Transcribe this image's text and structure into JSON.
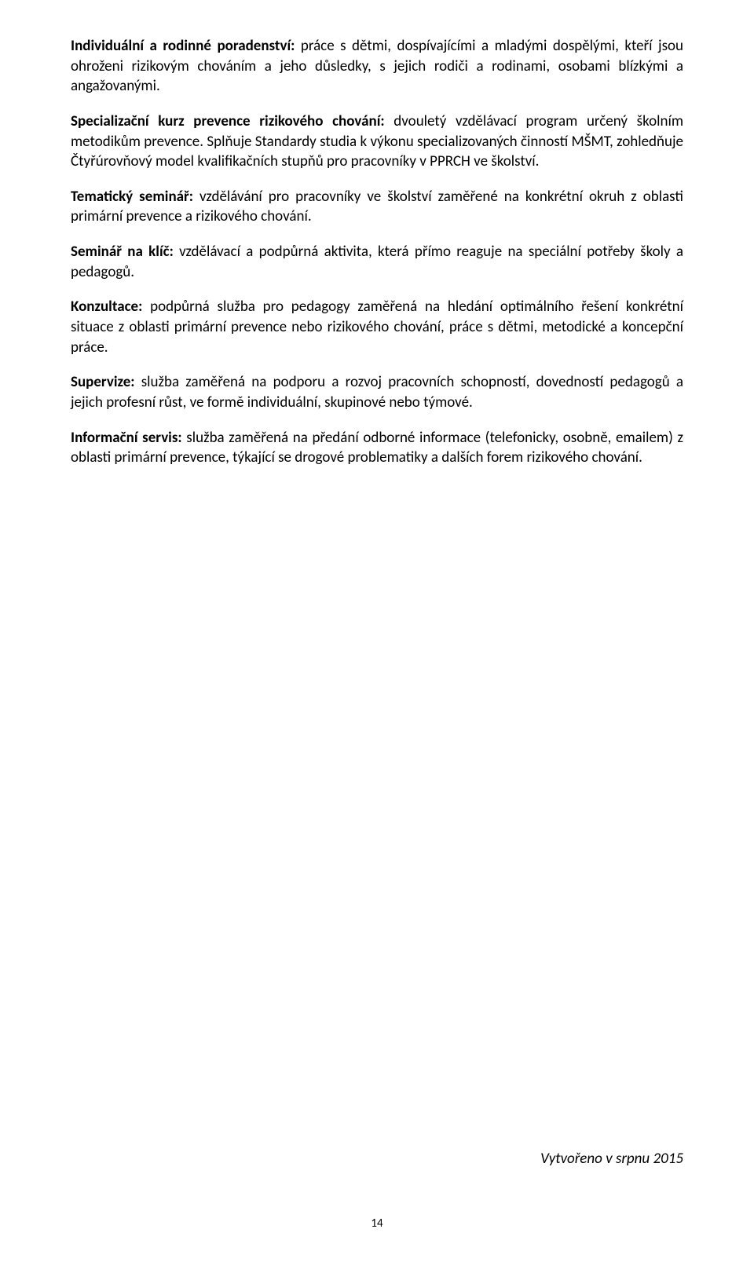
{
  "paragraphs": {
    "p1": {
      "bold": "Individuální a rodinné poradenství:",
      "text": " práce s dětmi, dospívajícími a mladými dospělými, kteří jsou ohroženi rizikovým chováním a jeho důsledky, s jejich rodiči a rodinami, osobami blízkými a angažovanými."
    },
    "p2": {
      "bold": "Specializační kurz prevence rizikového chování:",
      "text": " dvouletý vzdělávací program určený školním metodikům prevence. Splňuje Standardy studia k výkonu specializovaných činností MŠMT, zohledňuje Čtyřúrovňový model kvalifikačních stupňů pro pracovníky v PPRCH ve školství."
    },
    "p3": {
      "bold": "Tematický seminář:",
      "text": " vzdělávání pro pracovníky ve školství zaměřené na konkrétní okruh z oblasti primární prevence a rizikového chování."
    },
    "p4": {
      "bold": "Seminář na klíč:",
      "text": " vzdělávací a podpůrná aktivita, která přímo reaguje na speciální potřeby školy a pedagogů."
    },
    "p5": {
      "bold": "Konzultace:",
      "text": " podpůrná služba pro pedagogy zaměřená na hledání optimálního řešení konkrétní situace z oblasti primární prevence nebo rizikového chování, práce s dětmi, metodické a koncepční práce."
    },
    "p6": {
      "bold": "Supervize:",
      "text": " služba zaměřená na podporu a rozvoj pracovních schopností, dovedností pedagogů a jejich profesní růst, ve formě individuální, skupinové nebo týmové."
    },
    "p7": {
      "bold": "Informační servis:",
      "text": " služba zaměřená na předání odborné informace (telefonicky, osobně, emailem) z oblasti primární prevence, týkající se drogové problematiky a dalších forem rizikového chování."
    }
  },
  "footer_date": "Vytvořeno v srpnu 2015",
  "page_number": "14"
}
